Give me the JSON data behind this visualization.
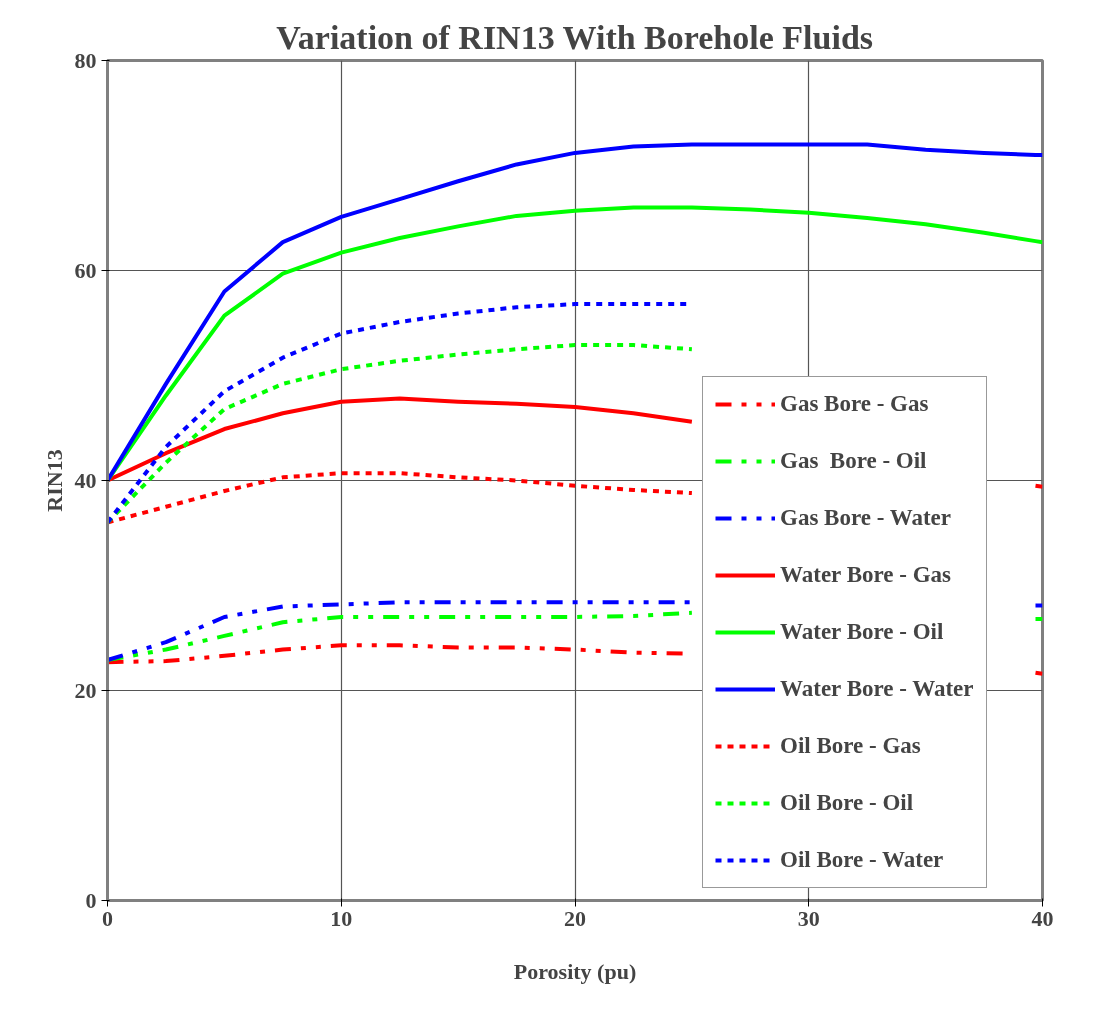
{
  "chart_data": {
    "type": "line",
    "title": "Variation of RIN13 With Borehole Fluids",
    "xlabel": "Porosity (pu)",
    "ylabel": "RIN13",
    "x": [
      0,
      2.5,
      5,
      7.5,
      10,
      12.5,
      15,
      17.5,
      20,
      22.5,
      25,
      27.5,
      30,
      32.5,
      35,
      37.5,
      39.7,
      40
    ],
    "xlim": [
      0,
      40
    ],
    "xticks": [
      0,
      10,
      20,
      30,
      40
    ],
    "ylim": [
      0,
      80
    ],
    "yticks": [
      0,
      20,
      40,
      60,
      80
    ],
    "grid": true,
    "legend": "right",
    "series": [
      {
        "name": "Gas Bore - Gas",
        "color": "#ff0000",
        "line_style": "dashed",
        "values": [
          22.7,
          22.8,
          23.3,
          23.9,
          24.3,
          24.3,
          24.1,
          24.1,
          23.9,
          23.6,
          23.5,
          null,
          null,
          null,
          null,
          null,
          21.7,
          21.6
        ]
      },
      {
        "name": "Gas  Bore - Oil",
        "color": "#00ff00",
        "line_style": "dashed",
        "values": [
          22.9,
          23.9,
          25.2,
          26.5,
          27,
          27,
          27,
          27,
          27,
          27.1,
          27.4,
          null,
          null,
          null,
          null,
          null,
          26.8,
          26.8
        ]
      },
      {
        "name": "Gas Bore - Water",
        "color": "#0000ff",
        "line_style": "dashed",
        "values": [
          22.9,
          24.6,
          27,
          28,
          28.2,
          28.4,
          28.4,
          28.4,
          28.4,
          28.4,
          28.4,
          null,
          null,
          null,
          null,
          null,
          28.1,
          28.1
        ]
      },
      {
        "name": "Water Bore - Gas",
        "color": "#ff0000",
        "line_style": "solid",
        "values": [
          40,
          42.6,
          44.9,
          46.4,
          47.5,
          47.8,
          47.5,
          47.3,
          47,
          46.4,
          45.6,
          null,
          null,
          null,
          null,
          null,
          39.5,
          39.4
        ]
      },
      {
        "name": "Water Bore - Oil",
        "color": "#00ff00",
        "line_style": "solid",
        "values": [
          40,
          48.1,
          55.7,
          59.7,
          61.7,
          63.1,
          64.2,
          65.2,
          65.7,
          66,
          66,
          65.8,
          65.5,
          65,
          64.4,
          63.6,
          62.8,
          62.7
        ]
      },
      {
        "name": "Water Bore - Water",
        "color": "#0000ff",
        "line_style": "solid",
        "values": [
          40,
          49.2,
          58,
          62.7,
          65.1,
          66.8,
          68.5,
          70.1,
          71.2,
          71.8,
          72,
          72,
          72,
          72,
          71.5,
          71.2,
          71,
          71
        ]
      },
      {
        "name": "Oil Bore - Gas",
        "color": "#ff0000",
        "line_style": "dotted",
        "values": [
          36,
          37.5,
          39,
          40.3,
          40.7,
          40.7,
          40.3,
          40,
          39.5,
          39.1,
          38.8,
          null,
          null,
          null,
          null,
          null,
          null,
          null
        ]
      },
      {
        "name": "Oil Bore - Oil",
        "color": "#00ff00",
        "line_style": "dotted",
        "values": [
          36,
          41.7,
          46.8,
          49.2,
          50.6,
          51.4,
          52,
          52.5,
          52.9,
          52.9,
          52.5,
          null,
          null,
          null,
          null,
          null,
          null,
          null
        ]
      },
      {
        "name": "Oil Bore - Water",
        "color": "#0000ff",
        "line_style": "dotted",
        "values": [
          36,
          43.2,
          48.5,
          51.7,
          54,
          55.1,
          55.9,
          56.5,
          56.8,
          56.8,
          56.8,
          null,
          null,
          null,
          null,
          null,
          null,
          null
        ]
      }
    ]
  }
}
